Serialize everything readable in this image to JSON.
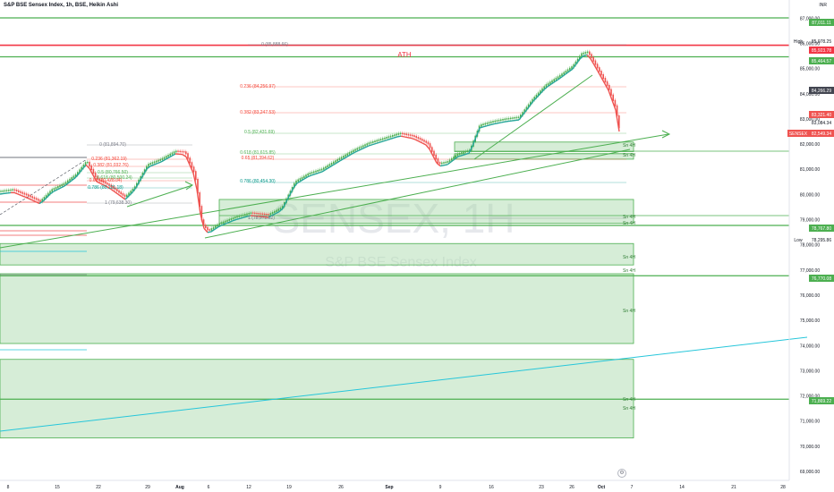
{
  "header": {
    "title": "S&P BSE Sensex Index, 1h, BSE, Heikin Ashi",
    "currency": "INR"
  },
  "watermark": {
    "symbol": "SENSEX, 1H",
    "name": "S&P BSE Sensex Index"
  },
  "annotation_ath": "ATH",
  "colors": {
    "up": "#26a69a",
    "candle_up": "#4caf50",
    "down": "#ef5350",
    "level_green": "#4caf50",
    "zone_fill": "#a5d6a7",
    "trend": "#4caf50",
    "channel": "#26c6da"
  },
  "fib_labels": [
    {
      "text": "0 (85,888.66)",
      "color": "#787b86"
    },
    {
      "text": "0.236 (84,256.97)",
      "color": "#f44336"
    },
    {
      "text": "0.382 (83,247.53)",
      "color": "#f44336"
    },
    {
      "text": "0.5 (82,431.69)",
      "color": "#4caf50"
    },
    {
      "text": "0.618 (81,615.85)",
      "color": "#4caf50"
    },
    {
      "text": "0.65 (81,394.62)",
      "color": "#f44336"
    },
    {
      "text": "0.786 (80,454.30)",
      "color": "#009688"
    },
    {
      "text": "1 (78,972.52)",
      "color": "#787b86"
    },
    {
      "text": "0 (81,894.70)",
      "color": "#787b86"
    },
    {
      "text": "0.236 (81,362.19)",
      "color": "#f44336"
    },
    {
      "text": "0.382 (81,032.76)",
      "color": "#f44336"
    },
    {
      "text": "0.5 (80,766.50)",
      "color": "#4caf50"
    },
    {
      "text": "0.618 (80,500.24)",
      "color": "#4caf50"
    },
    {
      "text": "0.65 (80,428.04)",
      "color": "#f44336"
    },
    {
      "text": "0.786 (80,121.18)",
      "color": "#009688"
    },
    {
      "text": "1 (79,638.30)",
      "color": "#787b86"
    }
  ],
  "zone_labels": [
    "Sn 4H",
    "Sn 4H",
    "Sn 4H",
    "Sn 4H",
    "Sn 4H",
    "Sn 4H",
    "Sn 4H",
    "Sn 4H",
    "Sn 4H"
  ],
  "chart_data": {
    "type": "candlestick",
    "title": "S&P BSE Sensex Index, 1h, BSE, Heikin Ashi",
    "xlabel": "",
    "ylabel": "",
    "ylim": [
      68900,
      87700
    ],
    "y_ticks": [
      69000,
      70000,
      71000,
      72000,
      73000,
      74000,
      75000,
      76000,
      77000,
      78000,
      79000,
      80000,
      81000,
      82000,
      83000,
      84000,
      85000,
      86000,
      87000
    ],
    "x_ticks": [
      "8",
      "15",
      "22",
      "29",
      "Aug",
      "6",
      "12",
      "19",
      "26",
      "Sep",
      "9",
      "16",
      "23",
      "26",
      "Oct",
      "7",
      "14",
      "21",
      "28"
    ],
    "grid": false,
    "price_tags": [
      {
        "label": "",
        "value": "87,011.11",
        "color": "#4caf50"
      },
      {
        "label": "High",
        "value": "85,978.25",
        "color": "none"
      },
      {
        "label": "",
        "value": "85,923.78",
        "color": "#f23645"
      },
      {
        "label": "",
        "value": "85,464.57",
        "color": "#4caf50"
      },
      {
        "label": "",
        "value": "84,266.29",
        "color": "#434651"
      },
      {
        "label": "",
        "value": "83,321.40",
        "color": "#ef5350"
      },
      {
        "label": "",
        "value": "83,084.34",
        "color": "none"
      },
      {
        "label": "SENSEX",
        "value": "82,549.34",
        "color": "#ef5350"
      },
      {
        "label": "",
        "value": "78,767.80",
        "color": "#4caf50"
      },
      {
        "label": "Low",
        "value": "78,295.86",
        "color": "none"
      },
      {
        "label": "",
        "value": "76,770.08",
        "color": "#4caf50"
      },
      {
        "label": "",
        "value": "71,869.22",
        "color": "#4caf50"
      }
    ],
    "horizontal_levels": [
      87011.11,
      85923.78,
      85464.57,
      78767.8,
      76770.08,
      71869.22
    ],
    "zones": [
      {
        "from": 81700,
        "to": 82080
      },
      {
        "from": 81400,
        "to": 81620
      },
      {
        "from": 78850,
        "to": 79800
      },
      {
        "from": 77200,
        "to": 78050
      },
      {
        "from": 74080,
        "to": 76850
      },
      {
        "from": 70330,
        "to": 73450
      }
    ],
    "series": [
      {
        "x": [
          "Jul 8",
          "Jul 10",
          "Jul 12",
          "Jul 15",
          "Jul 17",
          "Jul 19",
          "Jul 22",
          "Jul 24",
          "Jul 26",
          "Jul 29",
          "Jul 31",
          "Aug 2",
          "Aug 5",
          "Aug 7",
          "Aug 9",
          "Aug 12",
          "Aug 14",
          "Aug 16",
          "Aug 19",
          "Aug 21",
          "Aug 23",
          "Aug 26",
          "Aug 28",
          "Aug 30",
          "Sep 3",
          "Sep 5",
          "Sep 9",
          "Sep 11",
          "Sep 13",
          "Sep 16",
          "Sep 18",
          "Sep 20",
          "Sep 23",
          "Sep 25",
          "Sep 26",
          "Sep 27",
          "Sep 30",
          "Oct 1",
          "Oct 3"
        ],
        "close": [
          80000,
          79900,
          80400,
          80600,
          80800,
          80500,
          80300,
          80100,
          80800,
          81300,
          81600,
          81200,
          79000,
          79100,
          79500,
          79800,
          79400,
          80200,
          80900,
          81000,
          81200,
          81600,
          82000,
          82400,
          82300,
          82100,
          81300,
          81900,
          82500,
          82900,
          83000,
          84000,
          84700,
          85300,
          85900,
          85600,
          84600,
          84200,
          82550
        ]
      }
    ]
  }
}
